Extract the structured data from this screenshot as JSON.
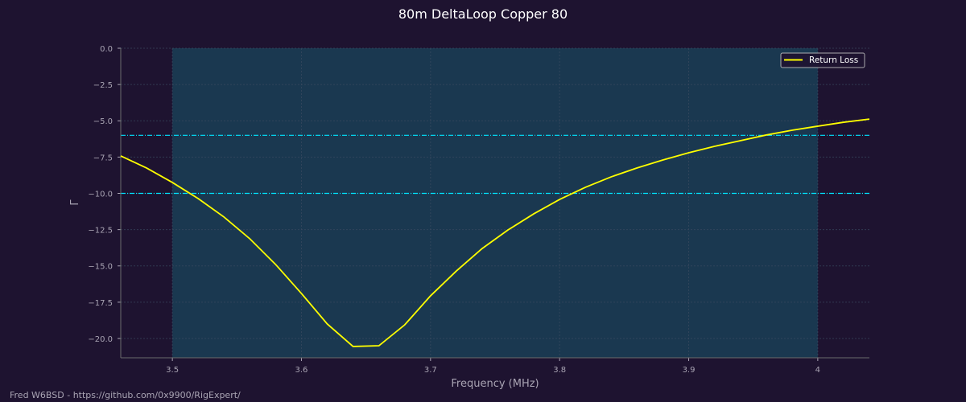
{
  "chart_data": {
    "type": "line",
    "title": "80m DeltaLoop Copper 80",
    "xlabel": "Frequency (MHz)",
    "ylabel": "Γ",
    "xlim": [
      3.46,
      4.04
    ],
    "ylim": [
      -21.33,
      0
    ],
    "xticks": [
      "3.5",
      "3.6",
      "3.7",
      "3.8",
      "3.9",
      "4"
    ],
    "xtick_values": [
      3.5,
      3.6,
      3.7,
      3.8,
      3.9,
      4.0
    ],
    "yticks": [
      "0.0",
      "−2.5",
      "−5.0",
      "−7.5",
      "−10.0",
      "−12.5",
      "−15.0",
      "−17.5",
      "−20.0"
    ],
    "ytick_values": [
      0,
      -2.5,
      -5,
      -7.5,
      -10,
      -12.5,
      -15,
      -17.5,
      -20
    ],
    "grid": true,
    "legend": {
      "position": "top-right",
      "entries": [
        "Return Loss"
      ]
    },
    "band": {
      "from": 3.5,
      "to": 4.0,
      "color": "#1a3850"
    },
    "hlines": [
      {
        "y": -6,
        "color": "#00e5ff",
        "style": "dash-dot"
      },
      {
        "y": -10,
        "color": "#00e5ff",
        "style": "dash-dot"
      }
    ],
    "series": [
      {
        "name": "Return Loss",
        "color": "#ffff00",
        "x": [
          3.46,
          3.48,
          3.5,
          3.52,
          3.54,
          3.56,
          3.58,
          3.6,
          3.62,
          3.64,
          3.66,
          3.68,
          3.7,
          3.72,
          3.74,
          3.76,
          3.78,
          3.8,
          3.82,
          3.84,
          3.86,
          3.88,
          3.9,
          3.92,
          3.94,
          3.96,
          3.98,
          4.0,
          4.02,
          4.04
        ],
        "y": [
          -7.42,
          -8.25,
          -9.25,
          -10.36,
          -11.63,
          -13.13,
          -14.9,
          -16.9,
          -19.0,
          -20.55,
          -20.5,
          -19.06,
          -17.06,
          -15.35,
          -13.8,
          -12.52,
          -11.41,
          -10.42,
          -9.58,
          -8.86,
          -8.25,
          -7.7,
          -7.2,
          -6.76,
          -6.37,
          -5.98,
          -5.65,
          -5.37,
          -5.1,
          -4.88
        ]
      }
    ]
  },
  "footer": "Fred W6BSD - https://github.com/0x9900/RigExpert/"
}
